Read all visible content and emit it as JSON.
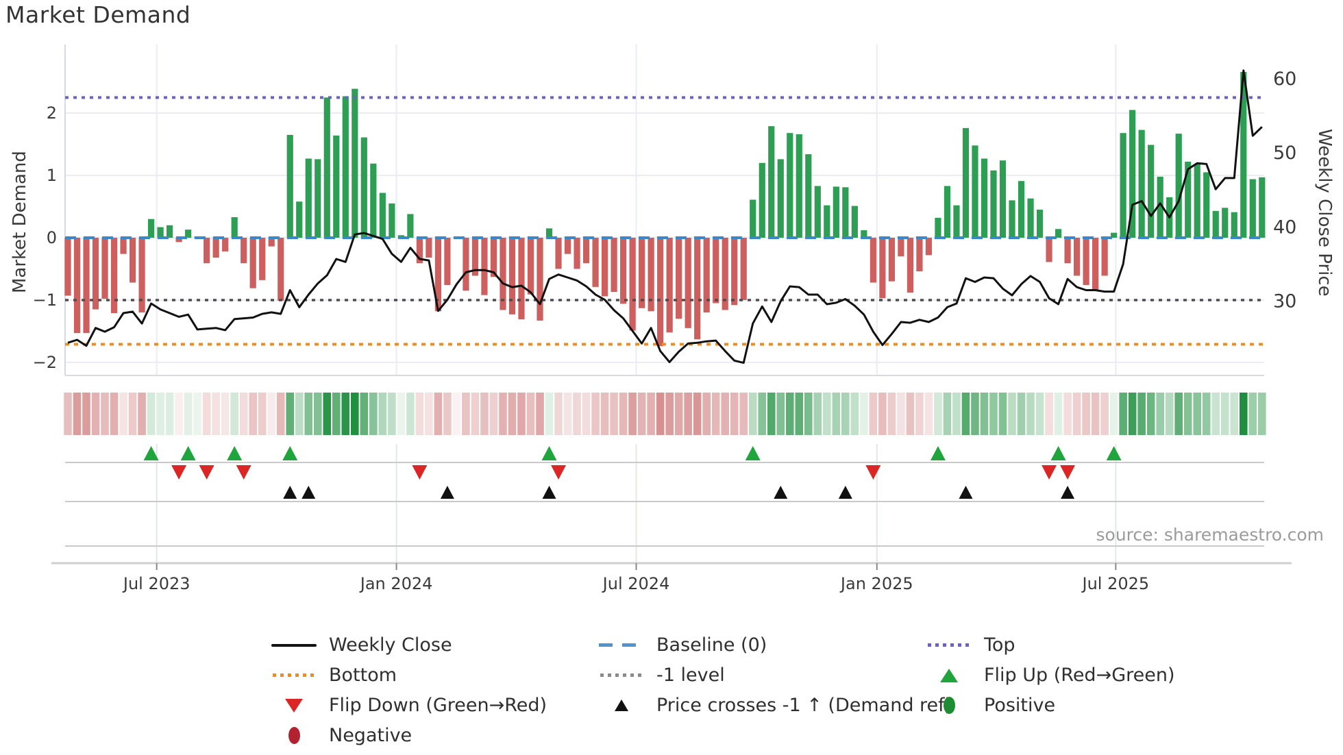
{
  "title": "Market Demand",
  "y_axis_left": {
    "label": "Market Demand",
    "tick_labels": [
      "2",
      "1",
      "0",
      "−1",
      "−2"
    ],
    "tick_values": [
      2,
      1,
      0,
      -1,
      -2
    ]
  },
  "y_axis_right": {
    "label": "Weekly Close Price",
    "tick_labels": [
      "60",
      "50",
      "40",
      "30"
    ],
    "tick_values": [
      60,
      50,
      40,
      30
    ]
  },
  "x_axis": {
    "tick_labels": [
      "Jul 2023",
      "Jan 2024",
      "Jul 2024",
      "Jan 2025",
      "Jul 2025"
    ],
    "tick_weeks": [
      9.6,
      35.5,
      61.4,
      87.4,
      113.2
    ]
  },
  "source": "source: sharemaestro.com",
  "colors": {
    "bar_positive": "#2e9e54",
    "bar_negative": "#cd5f5f",
    "price_line": "#111111",
    "baseline": "#3a87c9",
    "top_line": "#6c5fcf",
    "minus_one_line": "#4d4d4d",
    "bottom_line": "#ee8c1e",
    "flip_up": "#1fa53c",
    "flip_down": "#dc2626",
    "price_cross": "#111111",
    "grid": "#ebebf3",
    "panel_line": "#c9c9c9",
    "tick_text": "#3a3a3a"
  },
  "chart_data": {
    "type": "bar+line",
    "n_weeks": 130,
    "demand_ylim": [
      -2.21,
      3.1
    ],
    "price_ylim": [
      20.0,
      64.6
    ],
    "levels": {
      "baseline": 0,
      "top": 2.25,
      "minus_one": -1,
      "bottom": -1.71
    },
    "demand": [
      -0.93,
      -1.53,
      -1.53,
      -1.15,
      -0.98,
      -1.21,
      -0.26,
      -0.72,
      -1.2,
      0.3,
      0.17,
      0.2,
      -0.07,
      0.13,
      0.02,
      -0.41,
      -0.32,
      -0.22,
      0.33,
      -0.41,
      -0.81,
      -0.68,
      -0.14,
      -1.01,
      1.65,
      0.58,
      1.27,
      1.26,
      2.25,
      1.64,
      2.27,
      2.39,
      1.61,
      1.19,
      0.72,
      0.55,
      0.04,
      0.38,
      -0.41,
      -0.32,
      -1.18,
      -0.76,
      -0.02,
      -0.85,
      -0.61,
      -0.92,
      -0.63,
      -1.16,
      -1.23,
      -1.31,
      -0.91,
      -1.33,
      0.15,
      -0.5,
      -0.26,
      -0.5,
      -0.41,
      -0.79,
      -0.94,
      -0.87,
      -1.06,
      -1.49,
      -1.13,
      -1.18,
      -1.74,
      -1.52,
      -1.3,
      -1.45,
      -1.63,
      -1.2,
      -1.05,
      -1.16,
      -1.08,
      -1.0,
      0.61,
      1.2,
      1.79,
      1.26,
      1.68,
      1.66,
      1.34,
      0.83,
      0.52,
      0.82,
      0.81,
      0.51,
      0.12,
      -0.72,
      -0.97,
      -0.7,
      -0.3,
      -0.88,
      -0.54,
      -0.28,
      0.32,
      0.83,
      0.52,
      1.76,
      1.48,
      1.27,
      1.08,
      1.24,
      0.6,
      0.91,
      0.63,
      0.45,
      -0.39,
      0.14,
      -0.41,
      -0.61,
      -0.76,
      -0.85,
      -0.61,
      0.08,
      1.68,
      2.05,
      1.73,
      1.49,
      0.98,
      0.65,
      1.67,
      1.22,
      1.18,
      1.05,
      0.43,
      0.48,
      0.41,
      2.66,
      0.94,
      0.97
    ],
    "weekly_close": [
      24.4,
      24.8,
      24.0,
      26.4,
      25.9,
      26.5,
      28.4,
      28.6,
      27.0,
      29.7,
      28.9,
      28.4,
      27.9,
      28.2,
      26.2,
      26.3,
      26.4,
      26.1,
      27.6,
      27.7,
      27.8,
      28.3,
      28.5,
      28.3,
      31.5,
      29.2,
      30.9,
      32.4,
      33.5,
      35.7,
      35.3,
      39.0,
      39.2,
      38.8,
      38.4,
      36.4,
      35.3,
      37.2,
      35.7,
      35.5,
      28.7,
      30.2,
      32.3,
      33.9,
      34.2,
      34.2,
      33.9,
      32.4,
      31.9,
      32.1,
      31.2,
      29.6,
      33.0,
      33.6,
      33.2,
      32.8,
      32.0,
      30.9,
      30.2,
      28.8,
      27.7,
      26.0,
      24.3,
      26.4,
      23.3,
      21.8,
      23.2,
      24.3,
      24.4,
      24.6,
      24.7,
      23.3,
      22.0,
      21.7,
      27.0,
      29.3,
      27.2,
      30.0,
      32.0,
      31.9,
      30.9,
      30.9,
      29.6,
      29.8,
      30.3,
      29.4,
      28.2,
      25.9,
      24.1,
      25.6,
      27.2,
      27.1,
      27.5,
      27.2,
      27.8,
      29.2,
      29.7,
      33.1,
      32.6,
      33.2,
      33.1,
      31.7,
      30.8,
      32.3,
      33.4,
      32.6,
      30.4,
      29.6,
      33.0,
      31.9,
      31.5,
      31.5,
      31.3,
      31.3,
      35.0,
      43.0,
      43.5,
      41.5,
      43.2,
      41.3,
      43.5,
      47.8,
      48.6,
      48.5,
      45.1,
      46.6,
      46.6,
      61.1,
      52.3,
      53.5
    ],
    "flip_up_weeks": [
      9,
      13,
      18,
      24,
      52,
      74,
      94,
      107,
      113
    ],
    "flip_down_weeks": [
      12,
      15,
      19,
      38,
      53,
      87,
      106,
      108
    ],
    "price_cross_weeks": [
      24,
      26,
      41,
      52,
      77,
      84,
      97,
      108
    ],
    "heatmap": "derived-from-demand",
    "grid": true,
    "legend_position": "bottom"
  },
  "legend": {
    "items": [
      {
        "label": "Weekly Close",
        "swatch": "line-black"
      },
      {
        "label": "Baseline (0)",
        "swatch": "dash-blue"
      },
      {
        "label": "Top",
        "swatch": "dot-purple"
      },
      {
        "label": "Bottom",
        "swatch": "dot-orange"
      },
      {
        "label": "-1 level",
        "swatch": "dot-gray"
      },
      {
        "label": "Flip Up (Red→Green)",
        "swatch": "tri-up-green"
      },
      {
        "label": "Flip Down (Green→Red)",
        "swatch": "tri-down-red"
      },
      {
        "label": "Price crosses -1 ↑ (Demand ref)",
        "swatch": "tri-up-black"
      },
      {
        "label": "Positive",
        "swatch": "circle-green"
      },
      {
        "label": "Negative",
        "swatch": "circle-darkred"
      }
    ]
  }
}
